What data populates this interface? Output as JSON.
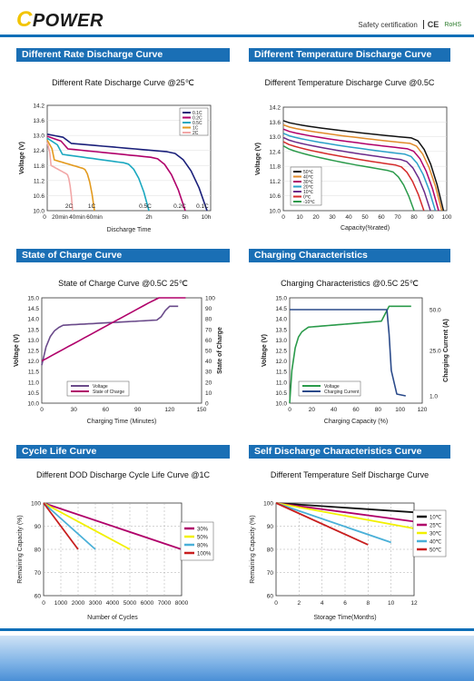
{
  "brand": {
    "logo_c": "C",
    "logo_text": "POWER",
    "cert_text": "Safety certification",
    "ce": "CE",
    "rohs": "RoHS"
  },
  "sections": {
    "s1": "Different Rate Discharge Curve",
    "s2": "Different Temperature Discharge Curve",
    "s3": "State of Charge Curve",
    "s4": "Charging Characteristics",
    "s5": "Cycle Life Curve",
    "s6": "Self Discharge Characteristics Curve"
  },
  "chart_data": [
    {
      "id": "c1",
      "type": "line",
      "title": "Different Rate Discharge Curve @25℃",
      "xlabel": "Discharge Time",
      "ylabel": "Voltage (V)",
      "ylim": [
        10.0,
        14.2
      ],
      "yticks": [
        10.0,
        10.6,
        11.2,
        11.8,
        12.4,
        13.0,
        13.6,
        14.2
      ],
      "xtick_labels": [
        "0",
        "20min",
        "40min",
        "60min",
        "2h",
        "5h",
        "10h"
      ],
      "legend": [
        "0.1C",
        "0.2C",
        "0.5C",
        "1C",
        "2C"
      ],
      "curve_labels": [
        "2C",
        "1C",
        "0.5C",
        "0.2C",
        "0.1C"
      ],
      "series": [
        {
          "name": "0.1C",
          "color": "#1a1f7a"
        },
        {
          "name": "0.2C",
          "color": "#b0006a"
        },
        {
          "name": "0.5C",
          "color": "#1aa8c0"
        },
        {
          "name": "1C",
          "color": "#e39a1e"
        },
        {
          "name": "2C",
          "color": "#f2a7a7"
        }
      ]
    },
    {
      "id": "c2",
      "type": "line",
      "title": "Different Temperature Discharge Curve @0.5C",
      "xlabel": "Capacity(%rated)",
      "ylabel": "Voltage (V)",
      "ylim": [
        10.0,
        14.2
      ],
      "yticks": [
        10.0,
        10.6,
        11.2,
        11.8,
        12.4,
        13.0,
        13.6,
        14.2
      ],
      "xticks": [
        0,
        10,
        20,
        30,
        40,
        50,
        60,
        70,
        80,
        90,
        100
      ],
      "series": [
        {
          "name": "50℃",
          "color": "#111111"
        },
        {
          "name": "40℃",
          "color": "#e08a2a"
        },
        {
          "name": "30℃",
          "color": "#b0006a"
        },
        {
          "name": "20℃",
          "color": "#2aa0c8"
        },
        {
          "name": "10℃",
          "color": "#6a2a8a"
        },
        {
          "name": "0℃",
          "color": "#d42a2a"
        },
        {
          "name": "-10℃",
          "color": "#2a9a4a"
        }
      ]
    },
    {
      "id": "c3",
      "type": "line",
      "title": "State of Charge Curve @0.5C 25℃",
      "xlabel": "Charging Time (Minutes)",
      "ylabel": "Voltage (V)",
      "ylabel2": "State of Charge",
      "ylim": [
        10.0,
        15.0
      ],
      "yticks": [
        10.0,
        10.5,
        11.0,
        11.5,
        12.0,
        12.5,
        13.0,
        13.5,
        14.0,
        14.5,
        15.0
      ],
      "y2ticks": [
        0,
        10,
        20,
        30,
        40,
        50,
        60,
        70,
        80,
        90,
        100
      ],
      "xticks": [
        0,
        30,
        60,
        90,
        120,
        150
      ],
      "series": [
        {
          "name": "Voltage",
          "color": "#6a4a8a"
        },
        {
          "name": "State of Charge",
          "color": "#b0006a"
        }
      ]
    },
    {
      "id": "c4",
      "type": "line",
      "title": "Charging Characteristics @0.5C 25℃",
      "xlabel": "Charging Capacity (%)",
      "ylabel": "Voltage (V)",
      "ylabel2": "Charging Current (A)",
      "ylim": [
        10.0,
        15.0
      ],
      "yticks": [
        10.0,
        10.5,
        11.0,
        11.5,
        12.0,
        12.5,
        13.0,
        13.5,
        14.0,
        14.5,
        15.0
      ],
      "y2ticks": [
        "1.0",
        "25.0",
        "50.0"
      ],
      "xticks": [
        0,
        20,
        40,
        60,
        80,
        100,
        120
      ],
      "series": [
        {
          "name": "Voltage",
          "color": "#2a9a4a"
        },
        {
          "name": "Charging Current",
          "color": "#2a4a8a"
        }
      ]
    },
    {
      "id": "c5",
      "type": "line",
      "title": "Different DOD Discharge Cycle Life Curve @1C",
      "xlabel": "Number of Cycles",
      "ylabel": "Remaining Capacity (%)",
      "ylim": [
        60,
        100
      ],
      "yticks": [
        60,
        70,
        80,
        90,
        100
      ],
      "xticks": [
        0,
        1000,
        2000,
        3000,
        4000,
        5000,
        6000,
        7000,
        8000
      ],
      "series": [
        {
          "name": "30%",
          "color": "#b0006a",
          "x": [
            0,
            8000
          ],
          "y": [
            100,
            80
          ]
        },
        {
          "name": "50%",
          "color": "#f2f000",
          "x": [
            0,
            5000
          ],
          "y": [
            100,
            80
          ]
        },
        {
          "name": "80%",
          "color": "#4ab0d8",
          "x": [
            0,
            3000
          ],
          "y": [
            100,
            80
          ]
        },
        {
          "name": "100%",
          "color": "#c81e1e",
          "x": [
            0,
            2000
          ],
          "y": [
            100,
            80
          ]
        }
      ]
    },
    {
      "id": "c6",
      "type": "line",
      "title": "Different Temperature Self Discharge Curve",
      "xlabel": "Storage Time(Months)",
      "ylabel": "Remaining Capacity (%)",
      "ylim": [
        60,
        100
      ],
      "yticks": [
        60,
        70,
        80,
        90,
        100
      ],
      "xticks": [
        0,
        2,
        4,
        6,
        8,
        10,
        12
      ],
      "series": [
        {
          "name": "10℃",
          "color": "#111111",
          "x": [
            0,
            12
          ],
          "y": [
            100,
            96
          ]
        },
        {
          "name": "25℃",
          "color": "#b0006a",
          "x": [
            0,
            12
          ],
          "y": [
            100,
            92
          ]
        },
        {
          "name": "30℃",
          "color": "#f2f000",
          "x": [
            0,
            12
          ],
          "y": [
            100,
            89
          ]
        },
        {
          "name": "40℃",
          "color": "#4ab0d8",
          "x": [
            0,
            10
          ],
          "y": [
            100,
            83
          ]
        },
        {
          "name": "50℃",
          "color": "#c81e1e",
          "x": [
            0,
            8
          ],
          "y": [
            100,
            82
          ]
        }
      ]
    }
  ]
}
